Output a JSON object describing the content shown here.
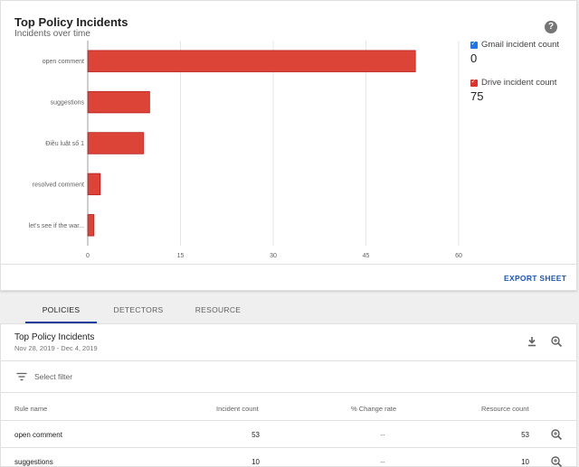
{
  "chart_card": {
    "title": "Top Policy Incidents",
    "subtitle": "Incidents over time",
    "help_glyph": "?",
    "export_label": "EXPORT SHEET",
    "legend": [
      {
        "label": "Gmail incident count",
        "value": "0",
        "color": "#1e74e8"
      },
      {
        "label": "Drive incident count",
        "value": "75",
        "color": "#e0312a"
      }
    ]
  },
  "chart_data": {
    "type": "bar",
    "orientation": "horizontal",
    "categories": [
      "open comment",
      "suggestions",
      "Điều luật số 1",
      "resolved comment",
      "let's see if the war..."
    ],
    "values": [
      53,
      10,
      9,
      2,
      1
    ],
    "xlim": [
      0,
      60
    ],
    "xticks": [
      "0",
      "15",
      "30",
      "45",
      "60"
    ],
    "grid": true,
    "bar_color": "#db4437",
    "bar_stroke": "#b71c1c"
  },
  "tabs": [
    {
      "label": "POLICIES",
      "active": true
    },
    {
      "label": "DETECTORS",
      "active": false
    },
    {
      "label": "RESOURCE",
      "active": false
    }
  ],
  "table_card": {
    "title": "Top Policy Incidents",
    "date_range": "Nov 28, 2019 - Dec 4, 2019",
    "filter_placeholder": "Select filter",
    "columns": [
      "Rule name",
      "Incident count",
      "% Change rate",
      "Resource count"
    ],
    "rows": [
      {
        "rule": "open comment",
        "incidents": "53",
        "change": "--",
        "resources": "53"
      },
      {
        "rule": "suggestions",
        "incidents": "10",
        "change": "--",
        "resources": "10"
      }
    ]
  }
}
